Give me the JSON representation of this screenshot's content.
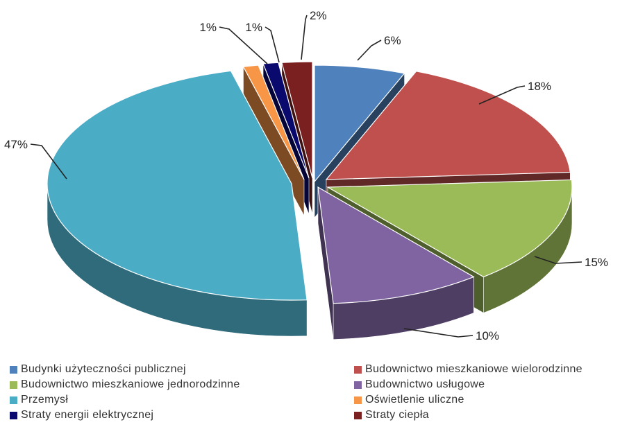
{
  "chart_data": {
    "type": "pie",
    "style": "3d-exploded",
    "title": "",
    "slices": [
      {
        "label": "Budynki użyteczności publicznej",
        "value": 6,
        "value_label": "6%",
        "color": "#4f81bd"
      },
      {
        "label": "Budownictwo mieszkaniowe wielorodzinne",
        "value": 18,
        "value_label": "18%",
        "color": "#c0504d"
      },
      {
        "label": "Budownictwo mieszkaniowe jednorodzinne",
        "value": 15,
        "value_label": "15%",
        "color": "#9bbb59"
      },
      {
        "label": "Budownictwo usługowe",
        "value": 10,
        "value_label": "10%",
        "color": "#8064a2"
      },
      {
        "label": "Przemysł",
        "value": 47,
        "value_label": "47%",
        "color": "#4bacc6"
      },
      {
        "label": "Oświetlenie uliczne",
        "value": 1,
        "value_label": "1%",
        "color": "#f79646"
      },
      {
        "label": "Straty energii elektrycznej",
        "value": 1,
        "value_label": "1%",
        "color": "#0a0a6e"
      },
      {
        "label": "Straty ciepła",
        "value": 2,
        "value_label": "2%",
        "color": "#7a2020"
      }
    ],
    "legend_position": "bottom",
    "legend_columns": 2
  }
}
